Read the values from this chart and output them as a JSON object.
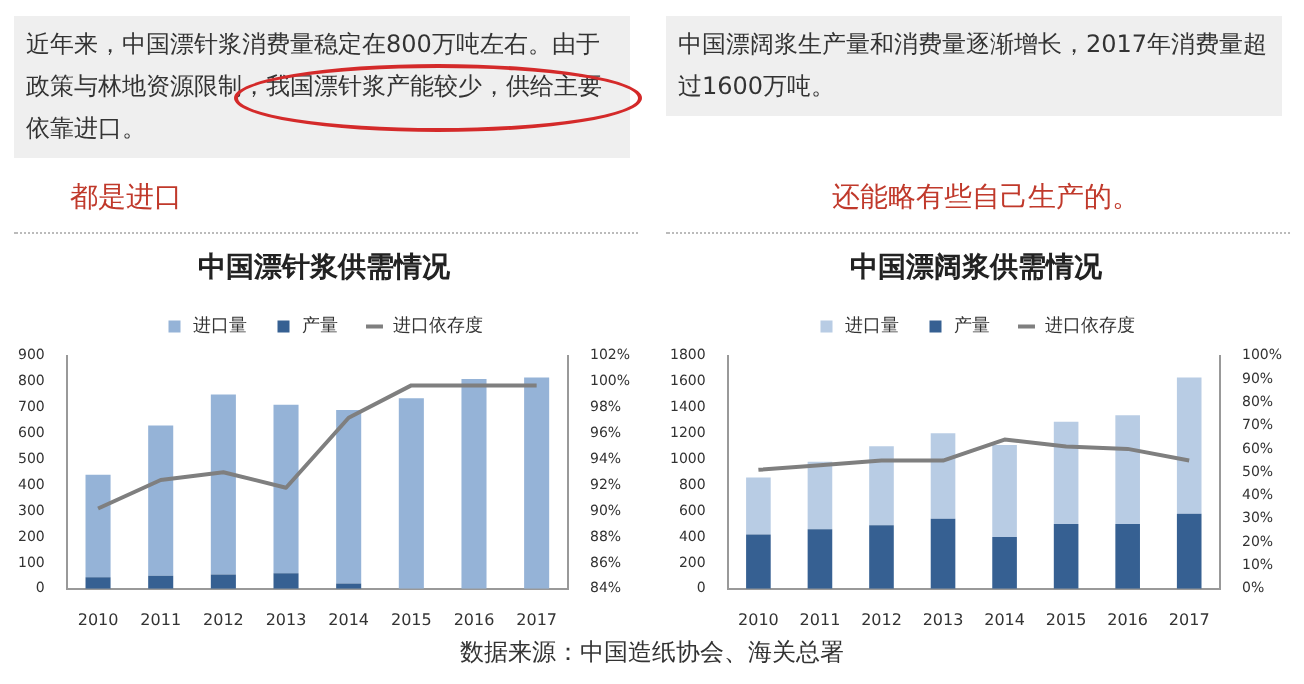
{
  "chart_data": [
    {
      "type": "bar",
      "title": "中国漂针浆供需情况",
      "stacked": true,
      "categories": [
        "2010",
        "2011",
        "2012",
        "2013",
        "2014",
        "2015",
        "2016",
        "2017"
      ],
      "series": [
        {
          "name": "产量",
          "color": "#366092",
          "values": [
            45,
            50,
            55,
            60,
            20,
            0,
            0,
            0
          ]
        },
        {
          "name": "进口量",
          "color": "#95b3d7",
          "values": [
            395,
            580,
            695,
            650,
            670,
            735,
            810,
            815
          ]
        },
        {
          "name": "进口依存度",
          "type": "line",
          "axis": "y2",
          "color": "#7f7f7f",
          "values": [
            90.2,
            92.4,
            93.0,
            91.8,
            97.2,
            99.7,
            99.7,
            99.7
          ]
        }
      ],
      "ylim": [
        0,
        900
      ],
      "yticks": [
        0,
        100,
        200,
        300,
        400,
        500,
        600,
        700,
        800,
        900
      ],
      "y2lim": [
        84,
        102
      ],
      "y2ticks": [
        {
          "value": 84,
          "label": "84%"
        },
        {
          "value": 86,
          "label": "86%"
        },
        {
          "value": 88,
          "label": "88%"
        },
        {
          "value": 90,
          "label": "90%"
        },
        {
          "value": 92,
          "label": "92%"
        },
        {
          "value": 94,
          "label": "94%"
        },
        {
          "value": 96,
          "label": "96%"
        },
        {
          "value": 98,
          "label": "98%"
        },
        {
          "value": 100,
          "label": "100%"
        },
        {
          "value": 102,
          "label": "102%"
        }
      ],
      "grid": false,
      "legend": "top",
      "marker": "none",
      "line_style": "solid",
      "annotations": [
        "近年来，中国漂针浆消费量稳定在800万吨左右。由于政策与林地资源限制，我国漂针浆产能较少，供给主要依靠进口。",
        "都是进口",
        "数据来源：中国造纸协会、海关总署"
      ]
    },
    {
      "type": "bar",
      "title": "中国漂阔浆供需情况",
      "stacked": true,
      "categories": [
        "2010",
        "2011",
        "2012",
        "2013",
        "2014",
        "2015",
        "2016",
        "2017"
      ],
      "series": [
        {
          "name": "产量",
          "color": "#366092",
          "values": [
            420,
            460,
            490,
            540,
            400,
            500,
            500,
            580
          ]
        },
        {
          "name": "进口量",
          "color": "#b8cce4",
          "values": [
            440,
            520,
            610,
            660,
            710,
            790,
            840,
            1050
          ]
        },
        {
          "name": "进口依存度",
          "type": "line",
          "axis": "y2",
          "color": "#7f7f7f",
          "values": [
            51,
            53,
            55,
            55,
            64,
            61,
            60,
            55
          ]
        }
      ],
      "ylim": [
        0,
        1800
      ],
      "yticks": [
        0,
        200,
        400,
        600,
        800,
        1000,
        1200,
        1400,
        1600,
        1800
      ],
      "y2lim": [
        0,
        100
      ],
      "y2ticks": [
        {
          "value": 0,
          "label": "0%"
        },
        {
          "value": 10,
          "label": "10%"
        },
        {
          "value": 20,
          "label": "20%"
        },
        {
          "value": 30,
          "label": "30%"
        },
        {
          "value": 40,
          "label": "40%"
        },
        {
          "value": 50,
          "label": "50%"
        },
        {
          "value": 60,
          "label": "60%"
        },
        {
          "value": 70,
          "label": "70%"
        },
        {
          "value": 80,
          "label": "80%"
        },
        {
          "value": 90,
          "label": "90%"
        },
        {
          "value": 100,
          "label": "100%"
        }
      ],
      "grid": false,
      "legend": "top",
      "marker": "none",
      "line_style": "solid",
      "annotations": [
        "中国漂阔浆生产量和消费量逐渐增长，2017年消费量超过1600万吨。",
        "还能略有些自己生产的。"
      ]
    }
  ]
}
